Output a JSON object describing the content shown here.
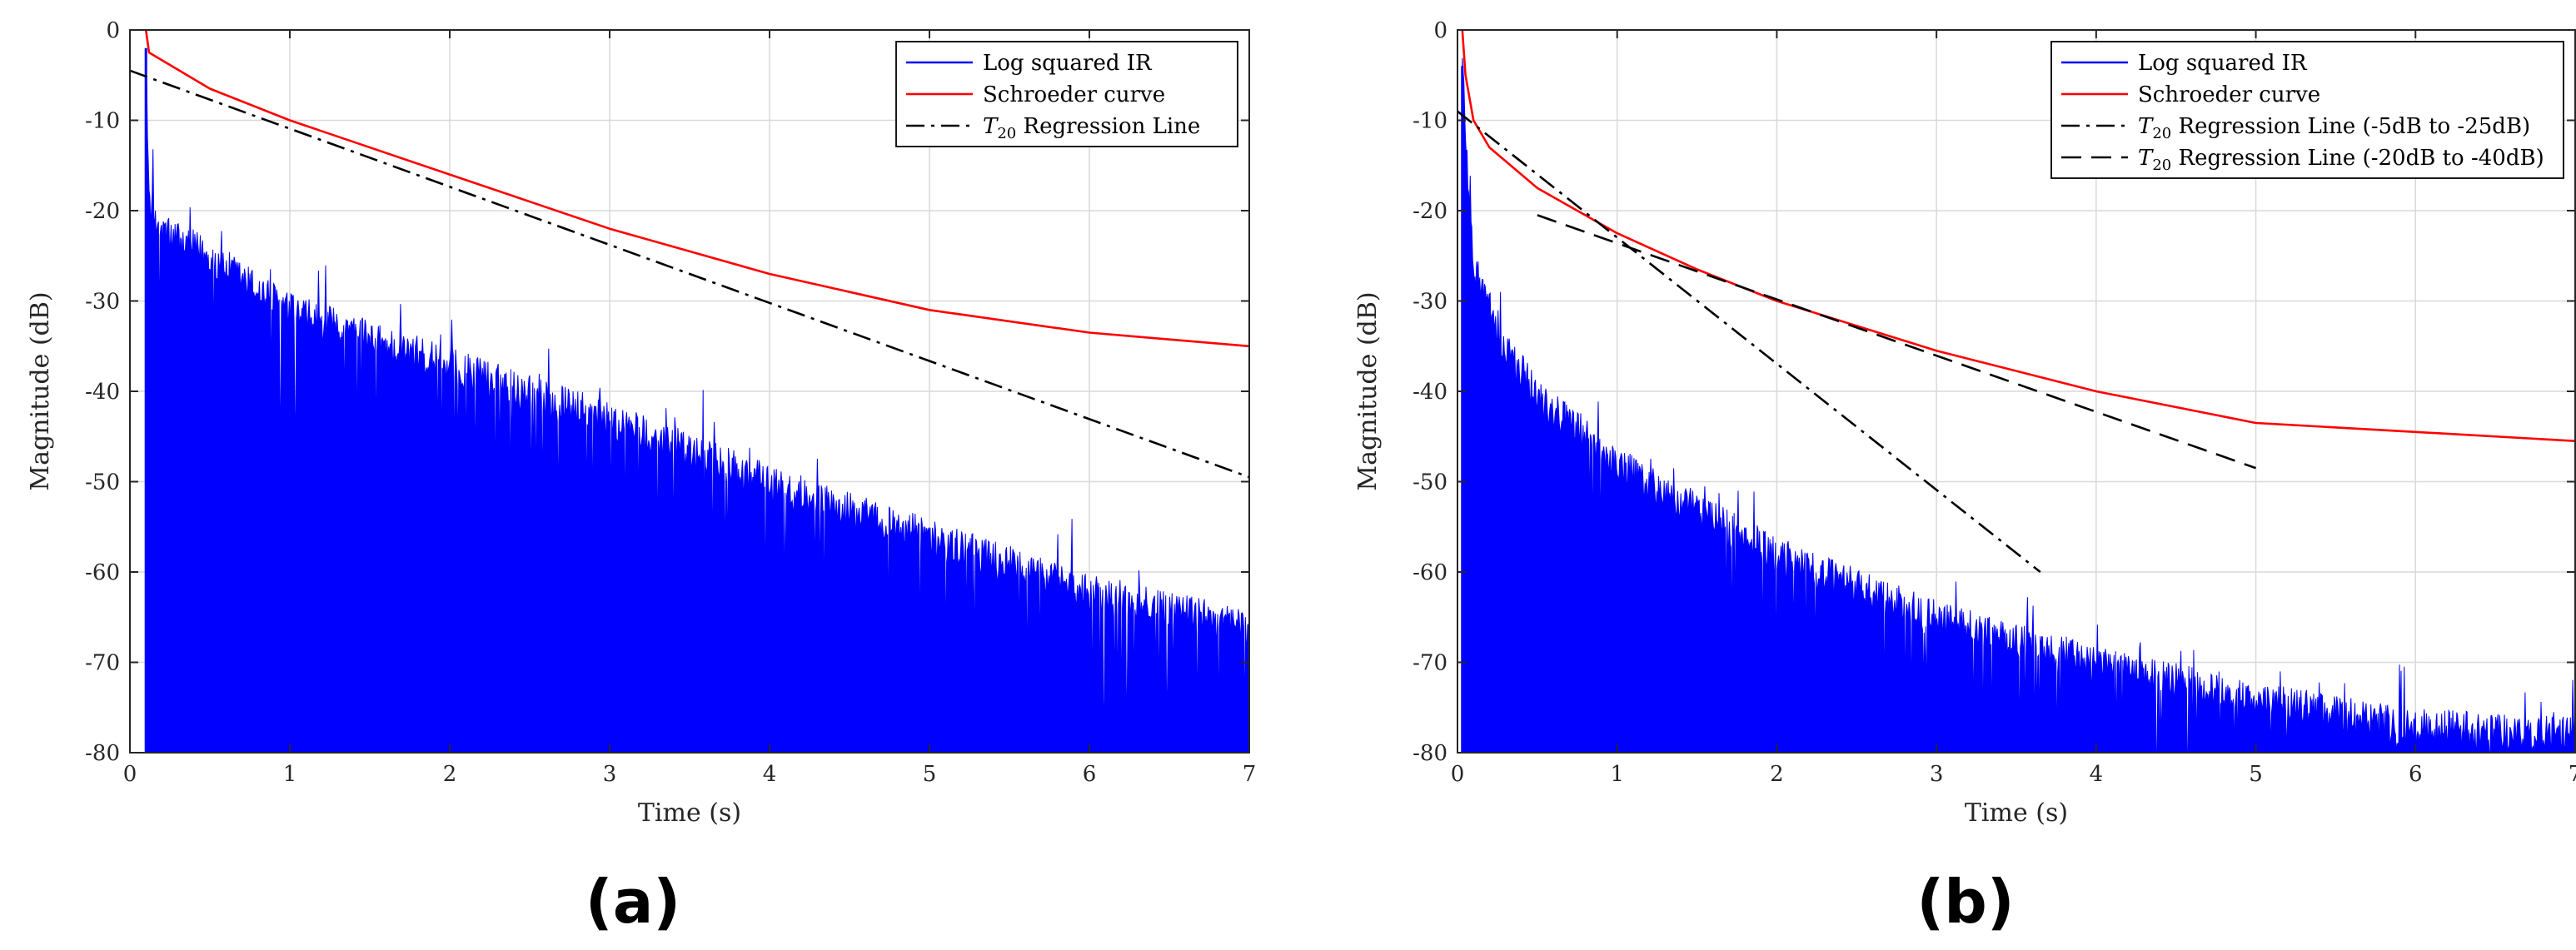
{
  "colors": {
    "ir": "#0000ff",
    "schroeder": "#ff0000",
    "regression": "#000000",
    "grid": "#d9d9d9",
    "axis": "#262626"
  },
  "chart_data": [
    {
      "id": "a",
      "type": "line",
      "panel_label": "(a)",
      "xlabel": "Time (s)",
      "ylabel": "Magnitude (dB)",
      "xlim": [
        0,
        7
      ],
      "ylim": [
        -80,
        0
      ],
      "xticks": [
        "0",
        "1",
        "2",
        "3",
        "4",
        "5",
        "6",
        "7"
      ],
      "yticks": [
        "0",
        "-10",
        "-20",
        "-30",
        "-40",
        "-50",
        "-60",
        "-70",
        "-80"
      ],
      "grid": true,
      "legend_position": "top-right",
      "ir": {
        "name": "Log squared IR",
        "peak_time": 0.1,
        "envelope": {
          "x": [
            0.1,
            0.12,
            0.2,
            0.5,
            1.0,
            2.0,
            3.0,
            4.0,
            5.0,
            6.0,
            7.0
          ],
          "y": [
            -2,
            -20,
            -23,
            -26,
            -32,
            -38,
            -44,
            -51,
            -57,
            -63,
            -67
          ]
        }
      },
      "series": [
        {
          "name": "Log squared IR",
          "role": "ir"
        },
        {
          "name": "Schroeder curve",
          "role": "schroeder",
          "x": [
            0.1,
            0.12,
            0.5,
            1.0,
            2.0,
            3.0,
            4.0,
            5.0,
            6.0,
            7.0
          ],
          "y": [
            0,
            -2.5,
            -6.5,
            -10,
            -16,
            -22,
            -27,
            -31,
            -33.5,
            -35
          ]
        },
        {
          "name_prefix": "T",
          "name_sub": "20",
          "name_suffix": " Regression Line",
          "role": "regression",
          "dash": "dashdot",
          "x": [
            0,
            7
          ],
          "y": [
            -4.5,
            -49.5
          ]
        }
      ]
    },
    {
      "id": "b",
      "type": "line",
      "panel_label": "(b)",
      "xlabel": "Time (s)",
      "ylabel": "Magnitude (dB)",
      "xlim": [
        0,
        7
      ],
      "ylim": [
        -80,
        0
      ],
      "xticks": [
        "0",
        "1",
        "2",
        "3",
        "4",
        "5",
        "6",
        "7"
      ],
      "yticks": [
        "0",
        "-10",
        "-20",
        "-30",
        "-40",
        "-50",
        "-60",
        "-70",
        "-80"
      ],
      "grid": true,
      "legend_position": "top-right",
      "ir": {
        "name": "Log squared IR",
        "peak_time": 0.03,
        "envelope": {
          "x": [
            0.03,
            0.06,
            0.1,
            0.3,
            0.5,
            1.0,
            2.0,
            3.0,
            4.0,
            5.0,
            6.0,
            7.0
          ],
          "y": [
            -4,
            -15,
            -27,
            -36,
            -41,
            -49,
            -59,
            -66,
            -71,
            -75,
            -78,
            -79
          ]
        }
      },
      "series": [
        {
          "name": "Log squared IR",
          "role": "ir"
        },
        {
          "name": "Schroeder curve",
          "role": "schroeder",
          "x": [
            0.03,
            0.05,
            0.1,
            0.2,
            0.5,
            1.0,
            1.5,
            2.0,
            3.0,
            4.0,
            5.0,
            6.0,
            7.0
          ],
          "y": [
            0,
            -5,
            -10,
            -13,
            -17.5,
            -22.5,
            -26.5,
            -30,
            -35.5,
            -40,
            -43.5,
            -44.5,
            -45.5
          ]
        },
        {
          "name_prefix": "T",
          "name_sub": "20",
          "name_suffix": " Regression Line (-5dB to -25dB)",
          "role": "regression",
          "dash": "dashdot",
          "x": [
            0,
            3.65
          ],
          "y": [
            -9,
            -60
          ]
        },
        {
          "name_prefix": "T",
          "name_sub": "20",
          "name_suffix": " Regression Line (-20dB to -40dB)",
          "role": "regression",
          "dash": "dash",
          "x": [
            0.5,
            5.0
          ],
          "y": [
            -20.5,
            -48.5
          ]
        }
      ]
    }
  ]
}
